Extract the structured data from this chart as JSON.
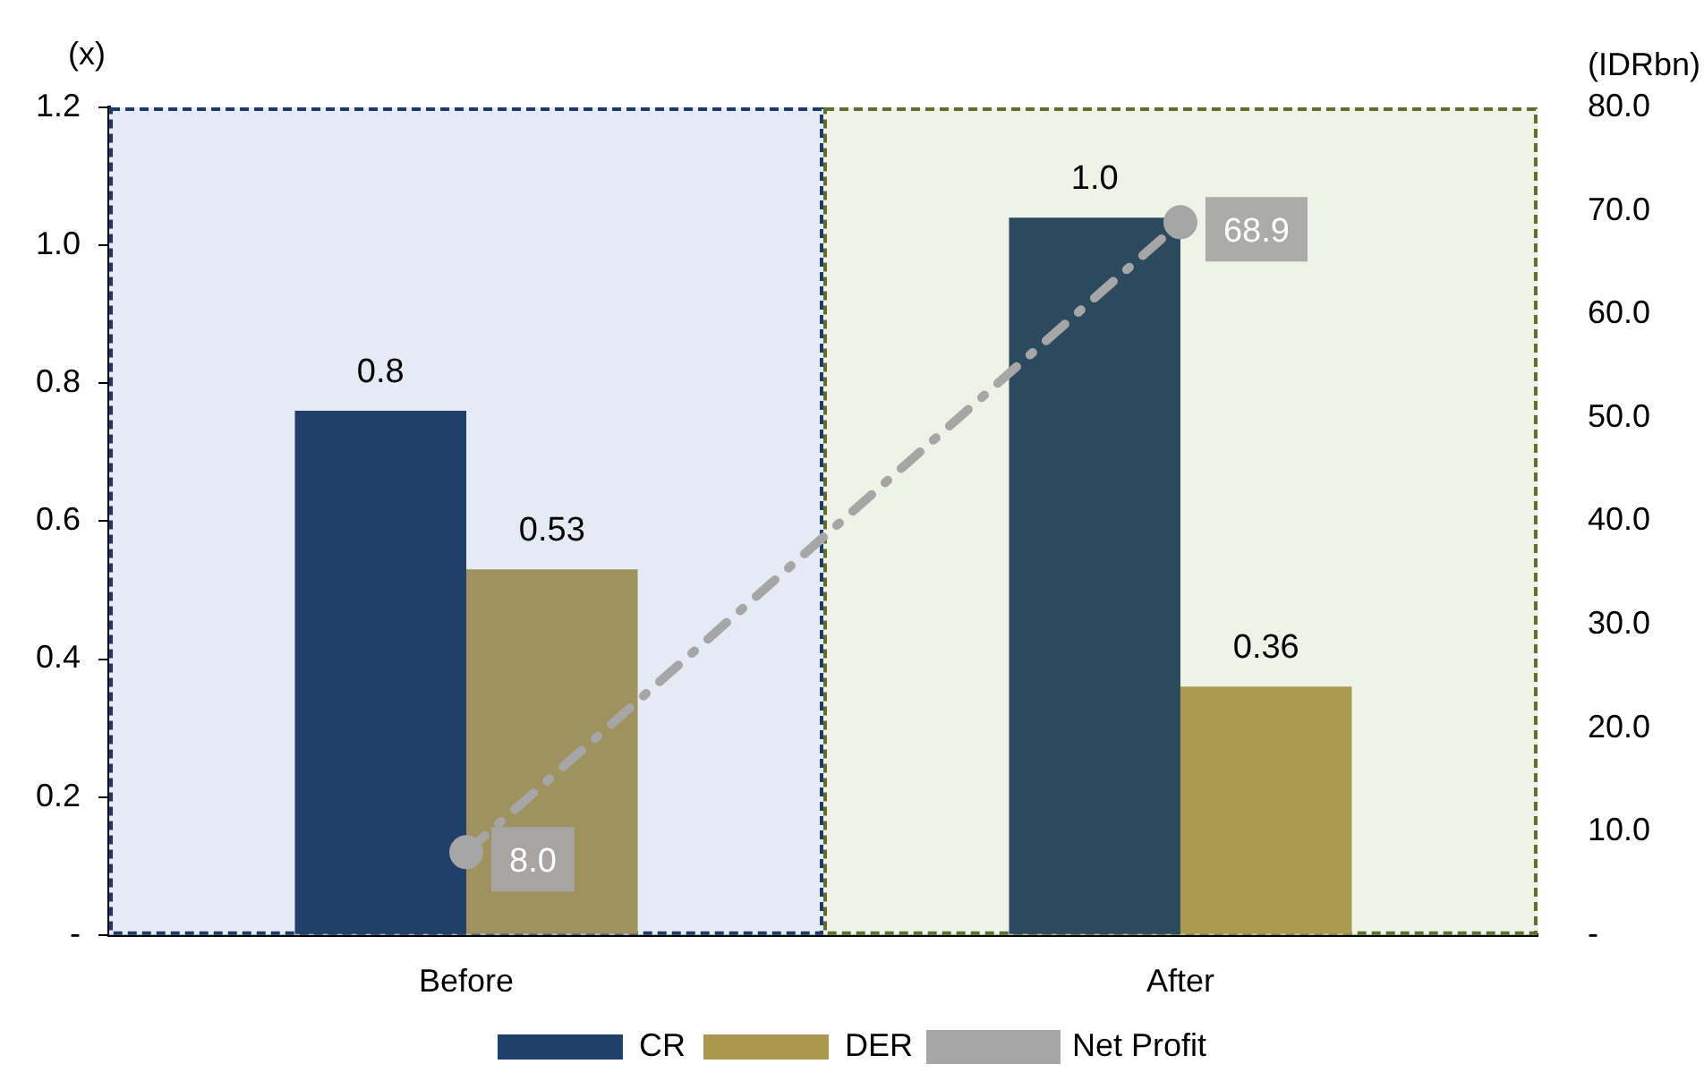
{
  "chart_data": {
    "type": "bar",
    "ylabel": "(x)",
    "y2label": "(IDRbn)",
    "categories": [
      "Before",
      "After"
    ],
    "series": [
      {
        "name": "CR",
        "color": "#203f69",
        "colors": [
          "#203f69",
          "#2c4a5e"
        ],
        "values": [
          0.76,
          1.04
        ],
        "value_labels": [
          "0.8",
          "1.0"
        ]
      },
      {
        "name": "DER",
        "color": "#ab974e",
        "colors": [
          "#9e925e",
          "#ab9a50"
        ],
        "values": [
          0.53,
          0.36
        ],
        "value_labels": [
          "0.53",
          "0.36"
        ]
      },
      {
        "name": "Net Profit",
        "type": "line",
        "axis": "y2",
        "color": "#a6a6a6",
        "values": [
          8.0,
          68.9
        ],
        "value_labels": [
          "8.0",
          "68.9"
        ],
        "marker": "circle",
        "line_style": "dashed"
      }
    ],
    "ylim": [
      0,
      1.2
    ],
    "yticks": [
      {
        "value": 0,
        "label": "-"
      },
      0.2,
      0.4,
      0.6,
      0.8,
      {
        "value": 1,
        "label": "1.0"
      },
      1.2
    ],
    "y2lim": [
      0,
      80
    ],
    "y2ticks": [
      {
        "value": 0,
        "label": "-"
      },
      {
        "value": 10,
        "label": "10.0"
      },
      {
        "value": 20,
        "label": "20.0"
      },
      {
        "value": 30,
        "label": "30.0"
      },
      {
        "value": 40,
        "label": "40.0"
      },
      {
        "value": 50,
        "label": "50.0"
      },
      {
        "value": 60,
        "label": "60.0"
      },
      {
        "value": 70,
        "label": "70.0"
      },
      {
        "value": 80,
        "label": "80.0"
      }
    ],
    "bands": [
      {
        "axis": "x",
        "from": "Before",
        "to": "Before",
        "color": "#e4ebf5"
      },
      {
        "axis": "x",
        "from": "After",
        "to": "After",
        "color": "#eff3e7"
      }
    ],
    "grid": false,
    "legend": "bottom"
  }
}
